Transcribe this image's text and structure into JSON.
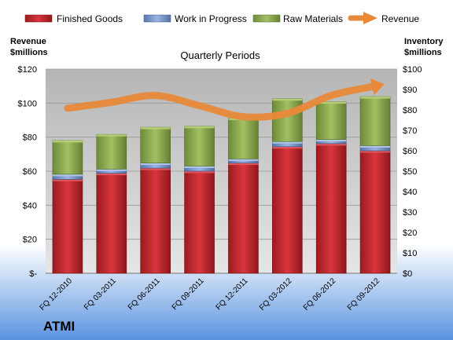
{
  "chart_data": {
    "type": "bar",
    "subtitle": "Quarterly Periods",
    "company": "ATMI",
    "left_axis_title": [
      "Revenue",
      "$millions"
    ],
    "right_axis_title": [
      "Inventory",
      "$millions"
    ],
    "categories": [
      "FQ 12-2010",
      "FQ 03-2011",
      "FQ 06-2011",
      "FQ 09-2011",
      "FQ 12-2011",
      "FQ 03-2012",
      "FQ 06-2012",
      "FQ 09-2012"
    ],
    "left_ticks": [
      "$-",
      "$20",
      "$40",
      "$60",
      "$80",
      "$100",
      "$120"
    ],
    "right_ticks": [
      "$0",
      "$10",
      "$20",
      "$30",
      "$40",
      "$50",
      "$60",
      "$70",
      "$80",
      "$90",
      "$100"
    ],
    "left_ylim": [
      0,
      120
    ],
    "right_ylim": [
      0,
      100
    ],
    "stacked": true,
    "series": [
      {
        "name": "Finished Goods",
        "axis": "right",
        "color": "#c0282d",
        "values": [
          46,
          49,
          51.5,
          50,
          54,
          62,
          63.5,
          60
        ]
      },
      {
        "name": "Work in Progress",
        "axis": "right",
        "color": "#6f8fc8",
        "values": [
          2.5,
          2,
          2.5,
          2.5,
          2,
          2.5,
          2,
          2.5
        ]
      },
      {
        "name": "Raw Materials",
        "axis": "right",
        "color": "#8fac4f",
        "values": [
          16.5,
          17,
          17.5,
          19.5,
          20,
          21,
          18.5,
          24
        ]
      },
      {
        "name": "Revenue",
        "axis": "left",
        "type": "line",
        "color": "#e8893a",
        "values": [
          97,
          100.5,
          104.5,
          98.5,
          92,
          94,
          104.5,
          110
        ]
      }
    ],
    "legend_position": "top",
    "grid": true,
    "colors": {
      "plot_bg_top": "#b7b7b7",
      "plot_bg_bottom": "#e4e4e4",
      "frame_bg_top": "#ffffff",
      "frame_bg_bottom": "#5b93e0"
    }
  }
}
